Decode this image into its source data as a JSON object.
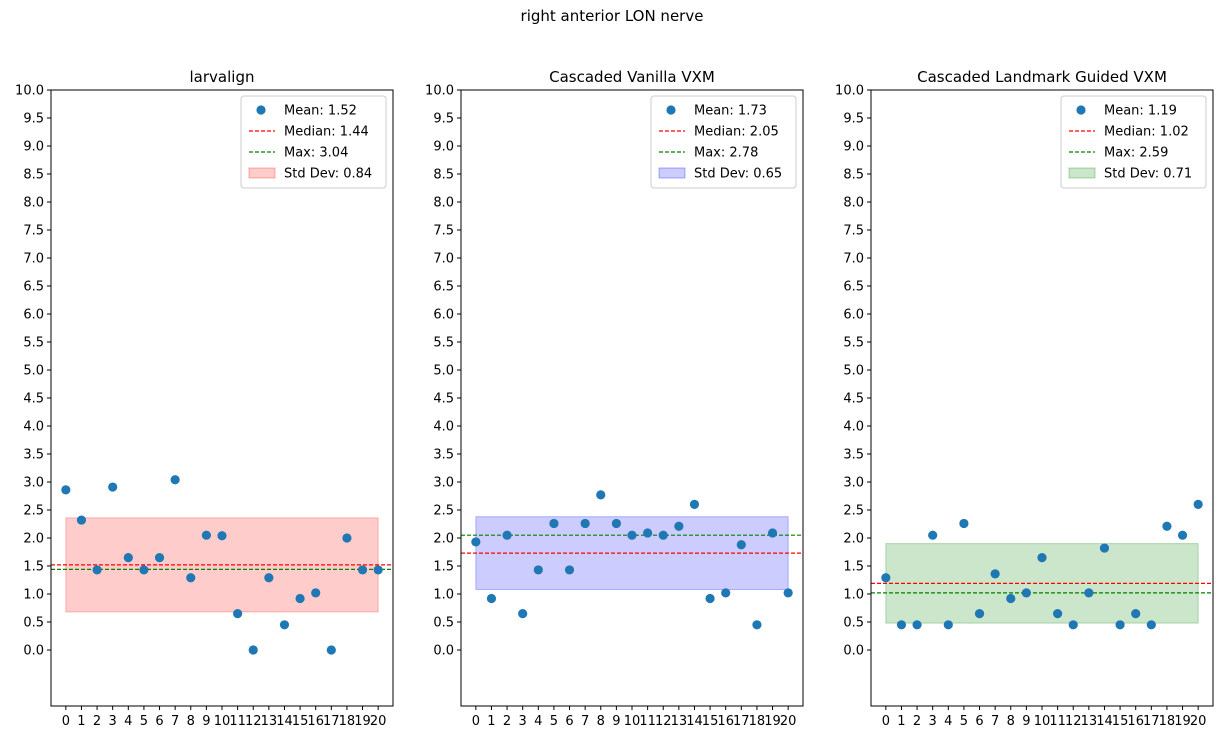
{
  "figure": {
    "suptitle": "right anterior LON nerve"
  },
  "chart_data": [
    {
      "type": "scatter",
      "title": "larvalign",
      "x": [
        0,
        1,
        2,
        3,
        4,
        5,
        6,
        7,
        8,
        9,
        10,
        11,
        12,
        13,
        14,
        15,
        16,
        17,
        18,
        19,
        20
      ],
      "values": [
        2.86,
        2.32,
        1.43,
        2.91,
        1.65,
        1.43,
        1.65,
        3.04,
        1.29,
        2.05,
        2.04,
        0.65,
        0.0,
        1.29,
        0.45,
        0.92,
        1.02,
        0.0,
        2.0,
        1.43,
        1.43
      ],
      "ylim": [
        -1.0,
        10.0
      ],
      "y_ticks": [
        "0.0",
        "0.5",
        "1.0",
        "1.5",
        "2.0",
        "2.5",
        "3.0",
        "3.5",
        "4.0",
        "4.5",
        "5.0",
        "5.5",
        "6.0",
        "6.5",
        "7.0",
        "7.5",
        "8.0",
        "8.5",
        "9.0",
        "9.5",
        "10.0"
      ],
      "x_ticks": [
        "0",
        "1",
        "2",
        "3",
        "4",
        "5",
        "6",
        "7",
        "8",
        "9",
        "10",
        "11",
        "12",
        "13",
        "14",
        "15",
        "16",
        "17",
        "18",
        "19",
        "20"
      ],
      "mean": 1.52,
      "median": 1.44,
      "max": 3.04,
      "std": 0.84,
      "band_color": "#ff0000",
      "legend": {
        "position": "top-right",
        "mean_label": "Mean: 1.52",
        "median_label": "Median: 1.44",
        "max_label": "Max: 3.04",
        "std_label": "Std Dev: 0.84"
      }
    },
    {
      "type": "scatter",
      "title": "Cascaded Vanilla VXM",
      "x": [
        0,
        1,
        2,
        3,
        4,
        5,
        6,
        7,
        8,
        9,
        10,
        11,
        12,
        13,
        14,
        15,
        16,
        17,
        18,
        19,
        20
      ],
      "values": [
        1.93,
        0.92,
        2.05,
        0.65,
        1.43,
        2.26,
        1.43,
        2.26,
        2.77,
        2.26,
        2.05,
        2.09,
        2.05,
        2.21,
        2.6,
        0.92,
        1.02,
        1.88,
        0.45,
        2.09,
        1.02
      ],
      "ylim": [
        -1.0,
        10.0
      ],
      "y_ticks": [
        "0.0",
        "0.5",
        "1.0",
        "1.5",
        "2.0",
        "2.5",
        "3.0",
        "3.5",
        "4.0",
        "4.5",
        "5.0",
        "5.5",
        "6.0",
        "6.5",
        "7.0",
        "7.5",
        "8.0",
        "8.5",
        "9.0",
        "9.5",
        "10.0"
      ],
      "x_ticks": [
        "0",
        "1",
        "2",
        "3",
        "4",
        "5",
        "6",
        "7",
        "8",
        "9",
        "10",
        "11",
        "12",
        "13",
        "14",
        "15",
        "16",
        "17",
        "18",
        "19",
        "20"
      ],
      "mean": 1.73,
      "median": 2.05,
      "max": 2.78,
      "std": 0.65,
      "band_color": "#0000ff",
      "legend": {
        "position": "top-right",
        "mean_label": "Mean: 1.73",
        "median_label": "Median: 2.05",
        "max_label": "Max: 2.78",
        "std_label": "Std Dev: 0.65"
      }
    },
    {
      "type": "scatter",
      "title": "Cascaded Landmark Guided VXM",
      "x": [
        0,
        1,
        2,
        3,
        4,
        5,
        6,
        7,
        8,
        9,
        10,
        11,
        12,
        13,
        14,
        15,
        16,
        17,
        18,
        19,
        20
      ],
      "values": [
        1.29,
        0.45,
        0.45,
        2.05,
        0.45,
        2.26,
        0.65,
        1.36,
        0.92,
        1.02,
        1.65,
        0.65,
        0.45,
        1.02,
        1.82,
        0.45,
        0.65,
        0.45,
        2.21,
        2.05,
        2.6
      ],
      "ylim": [
        -1.0,
        10.0
      ],
      "y_ticks": [
        "0.0",
        "0.5",
        "1.0",
        "1.5",
        "2.0",
        "2.5",
        "3.0",
        "3.5",
        "4.0",
        "4.5",
        "5.0",
        "5.5",
        "6.0",
        "6.5",
        "7.0",
        "7.5",
        "8.0",
        "8.5",
        "9.0",
        "9.5",
        "10.0"
      ],
      "x_ticks": [
        "0",
        "1",
        "2",
        "3",
        "4",
        "5",
        "6",
        "7",
        "8",
        "9",
        "10",
        "11",
        "12",
        "13",
        "14",
        "15",
        "16",
        "17",
        "18",
        "19",
        "20"
      ],
      "mean": 1.19,
      "median": 1.02,
      "max": 2.59,
      "std": 0.71,
      "band_color": "#008000",
      "legend": {
        "position": "top-right",
        "mean_label": "Mean: 1.19",
        "median_label": "Median: 1.02",
        "max_label": "Max: 2.59",
        "std_label": "Std Dev: 0.71"
      }
    }
  ],
  "colors": {
    "points": "#1f77b4",
    "median_line": "#ff0000",
    "max_line": "#008000"
  }
}
